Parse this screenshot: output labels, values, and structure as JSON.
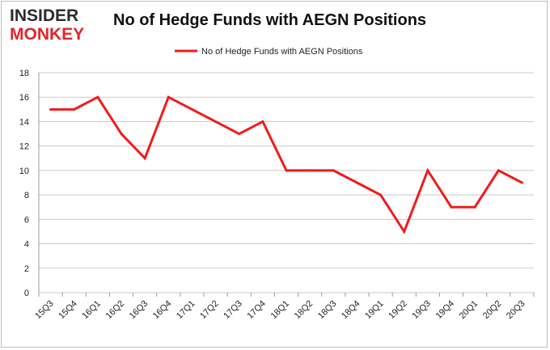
{
  "logo": {
    "line1": "INSIDER",
    "line2": "MONKEY"
  },
  "colors": {
    "series": "#ee1c1c",
    "grid": "#c8c8c8",
    "axis": "#9a9a9a"
  },
  "chart_data": {
    "type": "line",
    "title": "No of Hedge Funds with AEGN Positions",
    "xlabel": "",
    "ylabel": "",
    "categories": [
      "15Q3",
      "15Q4",
      "16Q1",
      "16Q2",
      "16Q3",
      "16Q4",
      "17Q1",
      "17Q2",
      "17Q3",
      "17Q4",
      "18Q1",
      "18Q2",
      "18Q3",
      "18Q4",
      "19Q1",
      "19Q2",
      "19Q3",
      "19Q4",
      "20Q1",
      "20Q2",
      "20Q3"
    ],
    "series": [
      {
        "name": "No of Hedge Funds with AEGN Positions",
        "values": [
          15,
          15,
          16,
          13,
          11,
          16,
          15,
          14,
          13,
          14,
          10,
          10,
          10,
          9,
          8,
          5,
          10,
          7,
          7,
          10,
          9
        ]
      }
    ],
    "ylim": [
      0,
      18
    ],
    "yticks": [
      0,
      2,
      4,
      6,
      8,
      10,
      12,
      14,
      16,
      18
    ],
    "grid": true,
    "legend": "top-center"
  }
}
